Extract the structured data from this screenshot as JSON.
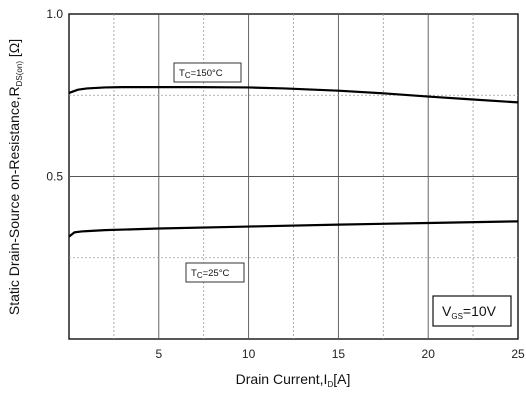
{
  "chart_data": {
    "type": "line",
    "xlabel": {
      "main": "Drain Current,I",
      "sub": "D",
      "tail": "[A]"
    },
    "ylabel": {
      "main": "Static Drain-Source on-Resistance,R",
      "sub": "DS(on)",
      "tail": " [Ω]"
    },
    "xlim": [
      0,
      25
    ],
    "ylim": [
      0,
      1.0
    ],
    "x_ticks": [
      5,
      10,
      15,
      20,
      25
    ],
    "y_ticks": [
      0.5,
      1.0
    ],
    "y_tick_labels": [
      "0.5",
      "1.0"
    ],
    "grid": "solid at labeled ticks, dotted at intermediate ticks",
    "series": [
      {
        "label": {
          "main": "T",
          "sub": "C",
          "tail": "=150°C"
        },
        "x": [
          0,
          0.5,
          1,
          2,
          3,
          5,
          7,
          10,
          12,
          15,
          17.5,
          20,
          22.5,
          25
        ],
        "y": [
          0.757,
          0.767,
          0.771,
          0.774,
          0.775,
          0.775,
          0.775,
          0.774,
          0.771,
          0.764,
          0.756,
          0.746,
          0.737,
          0.728
        ]
      },
      {
        "label": {
          "main": "T",
          "sub": "C",
          "tail": "=25°C"
        },
        "x": [
          0,
          0.3,
          0.7,
          1,
          2,
          5,
          10,
          15,
          20,
          25
        ],
        "y": [
          0.315,
          0.328,
          0.331,
          0.332,
          0.335,
          0.34,
          0.346,
          0.352,
          0.357,
          0.362
        ]
      }
    ],
    "condition": {
      "main": "V",
      "sub": "GS",
      "tail": "=10V"
    }
  }
}
